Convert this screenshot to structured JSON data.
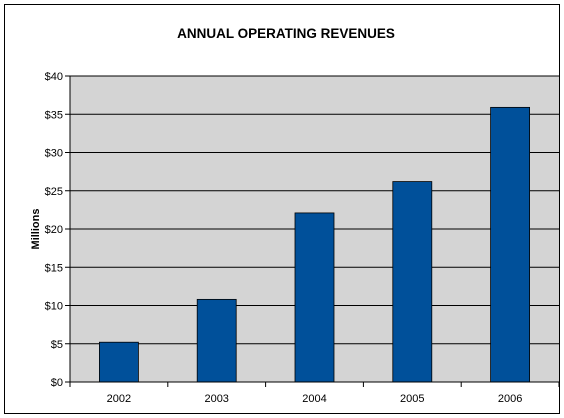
{
  "chart_data": {
    "type": "bar",
    "title": "ANNUAL OPERATING REVENUES",
    "xlabel": "",
    "ylabel": "Millions",
    "categories": [
      "2002",
      "2003",
      "2004",
      "2005",
      "2006"
    ],
    "values": [
      5.2,
      10.8,
      22.1,
      26.2,
      35.9
    ],
    "ylim": [
      0,
      40
    ],
    "ytick_values": [
      0,
      5,
      10,
      15,
      20,
      25,
      30,
      35,
      40
    ],
    "ytick_labels": [
      "$0",
      "$5",
      "$10",
      "$15",
      "$20",
      "$25",
      "$30",
      "$35",
      "$40"
    ],
    "grid": true,
    "legend": "none",
    "colors": {
      "bar": "#00509a",
      "plot_background": "#d4d4d4",
      "gridline": "#000000"
    }
  }
}
